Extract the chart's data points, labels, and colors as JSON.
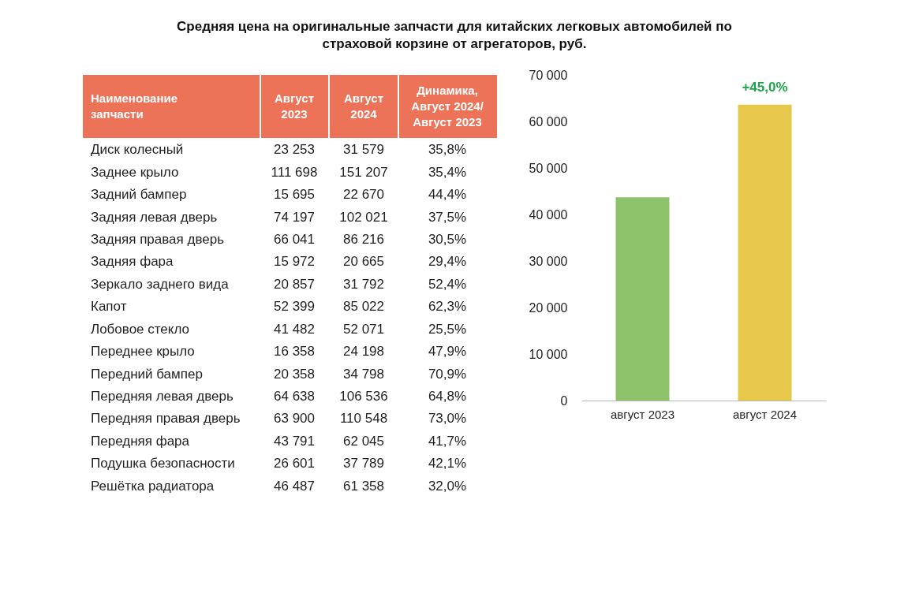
{
  "chart_data": [
    {
      "type": "other",
      "title": "Средняя цена на оригинальные запчасти для китайских легковых автомобилей по страховой корзине от агрегаторов, руб.",
      "xlabel": "Наименование запчасти",
      "categories": [
        "Диск колесный",
        "Заднее крыло",
        "Задний бампер",
        "Задняя левая дверь",
        "Задняя правая дверь",
        "Задняя фара",
        "Зеркало заднего вида",
        "Капот",
        "Лобовое стекло",
        "Переднее крыло",
        "Передний бампер",
        "Передняя левая дверь",
        "Передняя правая дверь",
        "Передняя фара",
        "Подушка безопасности",
        "Решётка радиатора"
      ],
      "series": [
        {
          "name": "Август 2023",
          "values": [
            23253,
            111698,
            15695,
            74197,
            66041,
            15972,
            20857,
            52399,
            41482,
            16358,
            20358,
            64638,
            63900,
            43791,
            26601,
            46487
          ],
          "value_labels": [
            "23 253",
            "111 698",
            "15 695",
            "74 197",
            "66 041",
            "15 972",
            "20 857",
            "52 399",
            "41 482",
            "16 358",
            "20 358",
            "64 638",
            "63 900",
            "43 791",
            "26 601",
            "46 487"
          ]
        },
        {
          "name": "Август 2024",
          "values": [
            31579,
            151207,
            22670,
            102021,
            86216,
            20665,
            31792,
            85022,
            52071,
            24198,
            34798,
            106536,
            110548,
            62045,
            37789,
            61358
          ],
          "value_labels": [
            "31 579",
            "151 207",
            "22 670",
            "102 021",
            "86 216",
            "20 665",
            "31 792",
            "85 022",
            "52 071",
            "24 198",
            "34 798",
            "106 536",
            "110 548",
            "62 045",
            "37 789",
            "61 358"
          ]
        },
        {
          "name": "Динамика, Август 2024/ Август 2023",
          "values": [
            35.8,
            35.4,
            44.4,
            37.5,
            30.5,
            29.4,
            52.4,
            62.3,
            25.5,
            47.9,
            70.9,
            64.8,
            73.0,
            41.7,
            42.1,
            32.0
          ],
          "value_labels": [
            "35,8%",
            "35,4%",
            "44,4%",
            "37,5%",
            "30,5%",
            "29,4%",
            "52,4%",
            "62,3%",
            "25,5%",
            "47,9%",
            "70,9%",
            "64,8%",
            "73,0%",
            "41,7%",
            "42,1%",
            "32,0%"
          ]
        }
      ]
    },
    {
      "type": "bar",
      "categories": [
        "август 2023",
        "август 2024"
      ],
      "values": [
        43700,
        63600
      ],
      "colors": [
        "#8dc26a",
        "#e8c84a"
      ],
      "ylim": [
        0,
        70000
      ],
      "yticks": [
        {
          "value": 0,
          "label": "0"
        },
        {
          "value": 10000,
          "label": "10 000"
        },
        {
          "value": 20000,
          "label": "20 000"
        },
        {
          "value": 30000,
          "label": "30 000"
        },
        {
          "value": 40000,
          "label": "40 000"
        },
        {
          "value": 50000,
          "label": "50 000"
        },
        {
          "value": 60000,
          "label": "60 000"
        },
        {
          "value": 70000,
          "label": "70 000"
        }
      ],
      "grid": false,
      "annotations": [
        {
          "text": "+45,0%",
          "x": "август 2024",
          "y": 63600
        }
      ]
    }
  ]
}
